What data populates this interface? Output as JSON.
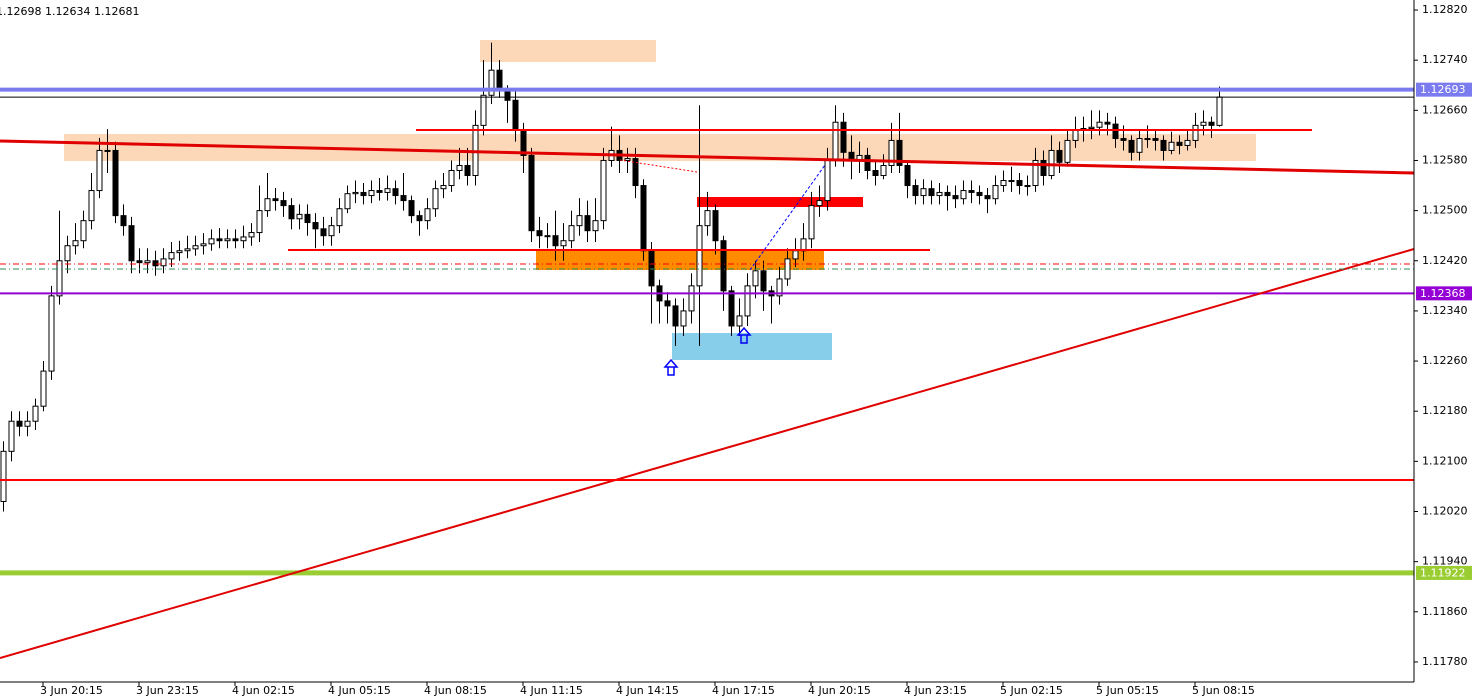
{
  "chart_data": {
    "type": "candlestick",
    "header": "1.12698 1.12634 1.12681",
    "categories": [
      null,
      null,
      null,
      null,
      null,
      "3 Jun 20:15",
      null,
      null,
      null,
      null,
      null,
      null,
      null,
      null,
      null,
      null,
      null,
      "3 Jun 23:15",
      null,
      null,
      null,
      null,
      null,
      null,
      null,
      null,
      null,
      null,
      null,
      "4 Jun 02:15",
      null,
      null,
      null,
      null,
      null,
      null,
      null,
      null,
      null,
      null,
      null,
      "4 Jun 05:15",
      null,
      null,
      null,
      null,
      null,
      null,
      null,
      null,
      null,
      null,
      null,
      "4 Jun 08:15",
      null,
      null,
      null,
      null,
      null,
      null,
      null,
      null,
      null,
      null,
      null,
      "4 Jun 11:15",
      null,
      null,
      null,
      null,
      null,
      null,
      null,
      null,
      null,
      null,
      null,
      "4 Jun 14:15",
      null,
      null,
      null,
      null,
      null,
      null,
      null,
      null,
      null,
      null,
      null,
      "4 Jun 17:15",
      null,
      null,
      null,
      null,
      null,
      null,
      null,
      null,
      null,
      null,
      null,
      "4 Jun 20:15",
      null,
      null,
      null,
      null,
      null,
      null,
      null,
      null,
      null,
      null,
      null,
      "4 Jun 23:15",
      null,
      null,
      null,
      null,
      null,
      null,
      null,
      null,
      null,
      null,
      null,
      "5 Jun 02:15",
      null,
      null,
      null,
      null,
      null,
      null,
      null,
      null,
      null,
      null,
      null,
      "5 Jun 05:15",
      null,
      null,
      null,
      null,
      null,
      null,
      null,
      null,
      null,
      null,
      null,
      "5 Jun 08:15",
      null,
      null,
      null
    ],
    "open": [
      1.12036,
      1.12116,
      1.12164,
      1.12156,
      1.12164,
      1.12188,
      1.12244,
      1.12364,
      1.1242,
      1.12444,
      1.12452,
      1.12484,
      1.12532,
      1.12596,
      1.12596,
      1.12492,
      1.12476,
      1.1242,
      1.12417,
      1.1242,
      1.12412,
      1.12423,
      1.12433,
      1.12436,
      1.12439,
      1.12444,
      1.12447,
      1.12455,
      1.12452,
      1.12455,
      1.12452,
      1.12458,
      1.12465,
      1.125,
      1.12519,
      1.12516,
      1.12508,
      1.12487,
      1.12494,
      1.12481,
      1.12471,
      1.1246,
      1.12476,
      1.12503,
      1.12527,
      1.12529,
      1.12524,
      1.12532,
      1.12529,
      1.12535,
      1.12524,
      1.12516,
      1.12492,
      1.12484,
      1.12503,
      1.12535,
      1.1254,
      1.12564,
      1.12572,
      1.12556,
      1.12636,
      1.12684,
      1.12724,
      1.12692,
      1.12676,
      1.12628,
      1.12588,
      1.12468,
      1.1246,
      1.1246,
      1.12444,
      1.12452,
      1.12476,
      1.12492,
      1.12468,
      1.12484,
      1.1258,
      1.12596,
      1.1258,
      1.12583,
      1.1254,
      1.12436,
      1.1238,
      1.12356,
      1.12348,
      1.12316,
      1.1234,
      1.1238,
      1.12476,
      1.125,
      1.12452,
      1.12372,
      1.12316,
      1.12332,
      1.1238,
      1.12404,
      1.12372,
      1.12364,
      1.12391,
      1.12423,
      1.12436,
      1.12455,
      1.12508,
      1.12516,
      1.1258,
      1.12641,
      1.12593,
      1.1258,
      1.12588,
      1.12564,
      1.12556,
      1.12572,
      1.12612,
      1.12572,
      1.1254,
      1.12524,
      1.12535,
      1.12524,
      1.12529,
      1.12524,
      1.12519,
      1.12532,
      1.12529,
      1.12524,
      1.12519,
      1.1254,
      1.12548,
      1.12548,
      1.1254,
      1.1254,
      1.1258,
      1.12556,
      1.12596,
      1.12577,
      1.12612,
      1.12628,
      1.12631,
      1.12633,
      1.12641,
      1.12638,
      1.12615,
      1.12612,
      1.12593,
      1.12615,
      1.12615,
      1.12612,
      1.12596,
      1.12609,
      1.12604,
      1.12612,
      1.12636,
      1.12641,
      1.12636
    ],
    "high": [
      1.12132,
      1.1218,
      1.1218,
      1.1218,
      1.122,
      1.1226,
      1.1238,
      1.125,
      1.1246,
      1.1248,
      1.125,
      1.1256,
      1.12616,
      1.1263,
      1.1261,
      1.1251,
      1.1249,
      1.1244,
      1.1244,
      1.12436,
      1.1244,
      1.1245,
      1.12452,
      1.1246,
      1.1246,
      1.12464,
      1.1247,
      1.12472,
      1.1247,
      1.1247,
      1.12476,
      1.1248,
      1.1254,
      1.1256,
      1.12536,
      1.1253,
      1.1252,
      1.1251,
      1.1251,
      1.12496,
      1.1249,
      1.1249,
      1.1252,
      1.1254,
      1.12548,
      1.12544,
      1.12548,
      1.12552,
      1.12556,
      1.12548,
      1.1256,
      1.12524,
      1.125,
      1.1252,
      1.12548,
      1.1256,
      1.1258,
      1.126,
      1.126,
      1.1266,
      1.1274,
      1.12768,
      1.1274,
      1.127,
      1.1269,
      1.1264,
      1.126,
      1.1249,
      1.1248,
      1.125,
      1.1248,
      1.125,
      1.1252,
      1.12516,
      1.1252,
      1.126,
      1.12634,
      1.1262,
      1.126,
      1.126,
      1.1255,
      1.1245,
      1.1239,
      1.1237,
      1.1236,
      1.1236,
      1.124,
      1.12668,
      1.1253,
      1.1251,
      1.1246,
      1.1238,
      1.1236,
      1.124,
      1.1242,
      1.1242,
      1.1238,
      1.1241,
      1.1244,
      1.12456,
      1.1248,
      1.1253,
      1.1254,
      1.126,
      1.12668,
      1.12656,
      1.1262,
      1.1261,
      1.126,
      1.1258,
      1.1259,
      1.1264,
      1.12656,
      1.1258,
      1.1255,
      1.1255,
      1.12548,
      1.12544,
      1.1254,
      1.1254,
      1.12548,
      1.12548,
      1.1254,
      1.12536,
      1.12556,
      1.12564,
      1.1257,
      1.1256,
      1.12556,
      1.126,
      1.12596,
      1.1262,
      1.1261,
      1.1263,
      1.1265,
      1.1265,
      1.1266,
      1.1266,
      1.12656,
      1.1265,
      1.12636,
      1.1262,
      1.1263,
      1.12636,
      1.1263,
      1.1262,
      1.12626,
      1.1262,
      1.1263,
      1.12656,
      1.1266,
      1.1265,
      1.12698
    ],
    "low": [
      1.1202,
      1.121,
      1.1214,
      1.1214,
      1.1215,
      1.1218,
      1.1223,
      1.1235,
      1.124,
      1.1243,
      1.1244,
      1.1247,
      1.1252,
      1.1256,
      1.1248,
      1.1246,
      1.124,
      1.124,
      1.124,
      1.12396,
      1.124,
      1.1241,
      1.1242,
      1.12424,
      1.12428,
      1.1243,
      1.12436,
      1.1244,
      1.1244,
      1.1244,
      1.1244,
      1.12444,
      1.1245,
      1.1249,
      1.125,
      1.1249,
      1.1247,
      1.1247,
      1.1246,
      1.1244,
      1.12444,
      1.12444,
      1.12464,
      1.12496,
      1.12512,
      1.1251,
      1.12512,
      1.12516,
      1.12516,
      1.1251,
      1.125,
      1.1248,
      1.1246,
      1.1247,
      1.1249,
      1.1252,
      1.1253,
      1.1255,
      1.1254,
      1.1254,
      1.1262,
      1.1267,
      1.1268,
      1.1264,
      1.1261,
      1.1256,
      1.1245,
      1.1244,
      1.1244,
      1.1242,
      1.1242,
      1.1244,
      1.1246,
      1.1245,
      1.1245,
      1.1247,
      1.1257,
      1.1256,
      1.1256,
      1.1252,
      1.1242,
      1.1232,
      1.1232,
      1.1232,
      1.12284,
      1.123,
      1.1232,
      1.12284,
      1.1246,
      1.1243,
      1.1234,
      1.123,
      1.123,
      1.12316,
      1.1236,
      1.1234,
      1.1232,
      1.1235,
      1.1238,
      1.1241,
      1.1242,
      1.1244,
      1.1249,
      1.125,
      1.1257,
      1.1257,
      1.1255,
      1.1256,
      1.1255,
      1.1254,
      1.1255,
      1.1256,
      1.1256,
      1.1252,
      1.1251,
      1.1251,
      1.1251,
      1.1251,
      1.125,
      1.12504,
      1.1251,
      1.12512,
      1.1251,
      1.12496,
      1.1251,
      1.1253,
      1.1253,
      1.12526,
      1.12524,
      1.1253,
      1.1254,
      1.1255,
      1.1256,
      1.1257,
      1.126,
      1.1261,
      1.12614,
      1.1262,
      1.1262,
      1.126,
      1.12596,
      1.1258,
      1.1258,
      1.126,
      1.12596,
      1.1258,
      1.1259,
      1.1259,
      1.12596,
      1.126,
      1.1262,
      1.12616,
      1.12634
    ],
    "close": [
      1.12116,
      1.12164,
      1.12156,
      1.12164,
      1.12188,
      1.12244,
      1.12364,
      1.1242,
      1.12444,
      1.12452,
      1.12484,
      1.12532,
      1.12596,
      1.12596,
      1.12492,
      1.12476,
      1.1242,
      1.12417,
      1.1242,
      1.12412,
      1.12423,
      1.12433,
      1.12436,
      1.12439,
      1.12444,
      1.12447,
      1.12455,
      1.12452,
      1.12455,
      1.12452,
      1.12458,
      1.12465,
      1.125,
      1.12519,
      1.12516,
      1.12508,
      1.12487,
      1.12494,
      1.12481,
      1.12471,
      1.1246,
      1.12476,
      1.12503,
      1.12527,
      1.12529,
      1.12524,
      1.12532,
      1.12529,
      1.12535,
      1.12524,
      1.12516,
      1.12492,
      1.12484,
      1.12503,
      1.12535,
      1.1254,
      1.12564,
      1.12572,
      1.12556,
      1.12636,
      1.12684,
      1.12724,
      1.12692,
      1.12676,
      1.12628,
      1.12588,
      1.12468,
      1.1246,
      1.1246,
      1.12444,
      1.12452,
      1.12476,
      1.12492,
      1.12468,
      1.12484,
      1.1258,
      1.12596,
      1.1258,
      1.12583,
      1.1254,
      1.12436,
      1.1238,
      1.12356,
      1.12348,
      1.12316,
      1.1234,
      1.1238,
      1.12476,
      1.125,
      1.12452,
      1.12372,
      1.12316,
      1.12332,
      1.1238,
      1.12404,
      1.12372,
      1.12364,
      1.12391,
      1.12423,
      1.12436,
      1.12455,
      1.12508,
      1.12516,
      1.1258,
      1.12641,
      1.12593,
      1.1258,
      1.12588,
      1.12564,
      1.12556,
      1.12572,
      1.12612,
      1.12572,
      1.1254,
      1.12524,
      1.12535,
      1.12524,
      1.12529,
      1.12524,
      1.12519,
      1.12532,
      1.12529,
      1.12524,
      1.12519,
      1.1254,
      1.12548,
      1.12548,
      1.1254,
      1.1254,
      1.1258,
      1.12556,
      1.12596,
      1.12577,
      1.12612,
      1.12628,
      1.12631,
      1.12633,
      1.12641,
      1.12638,
      1.12615,
      1.12612,
      1.12593,
      1.12615,
      1.12615,
      1.12612,
      1.12596,
      1.12609,
      1.12604,
      1.12612,
      1.12636,
      1.12641,
      1.12636,
      1.12681
    ],
    "up_color": "#ffffff",
    "down_color": "#000000",
    "wick_color": "#000000",
    "ylim": [
      1.11748,
      1.12836
    ],
    "yticks": [
      {
        "value": 1.1282,
        "label": "1.12820"
      },
      {
        "value": 1.1274,
        "label": "1.12740"
      },
      {
        "value": 1.1266,
        "label": "1.12660"
      },
      {
        "value": 1.1258,
        "label": "1.12580"
      },
      {
        "value": 1.125,
        "label": "1.12500"
      },
      {
        "value": 1.1242,
        "label": "1.12420"
      },
      {
        "value": 1.1234,
        "label": "1.12340"
      },
      {
        "value": 1.1226,
        "label": "1.12260"
      },
      {
        "value": 1.1218,
        "label": "1.12180"
      },
      {
        "value": 1.121,
        "label": "1.12100"
      },
      {
        "value": 1.1202,
        "label": "1.12020"
      },
      {
        "value": 1.1194,
        "label": "1.11940"
      },
      {
        "value": 1.1186,
        "label": "1.11860"
      },
      {
        "value": 1.1178,
        "label": "1.11780"
      }
    ],
    "grid": false,
    "levels": [
      {
        "value": 1.12693,
        "color": "#7b7bf0",
        "line_width": 4
      },
      {
        "value": 1.12368,
        "color": "#9400d3",
        "line_width": 2
      },
      {
        "value": 1.11922,
        "color": "#9acd32",
        "line_width": 5
      }
    ]
  }
}
